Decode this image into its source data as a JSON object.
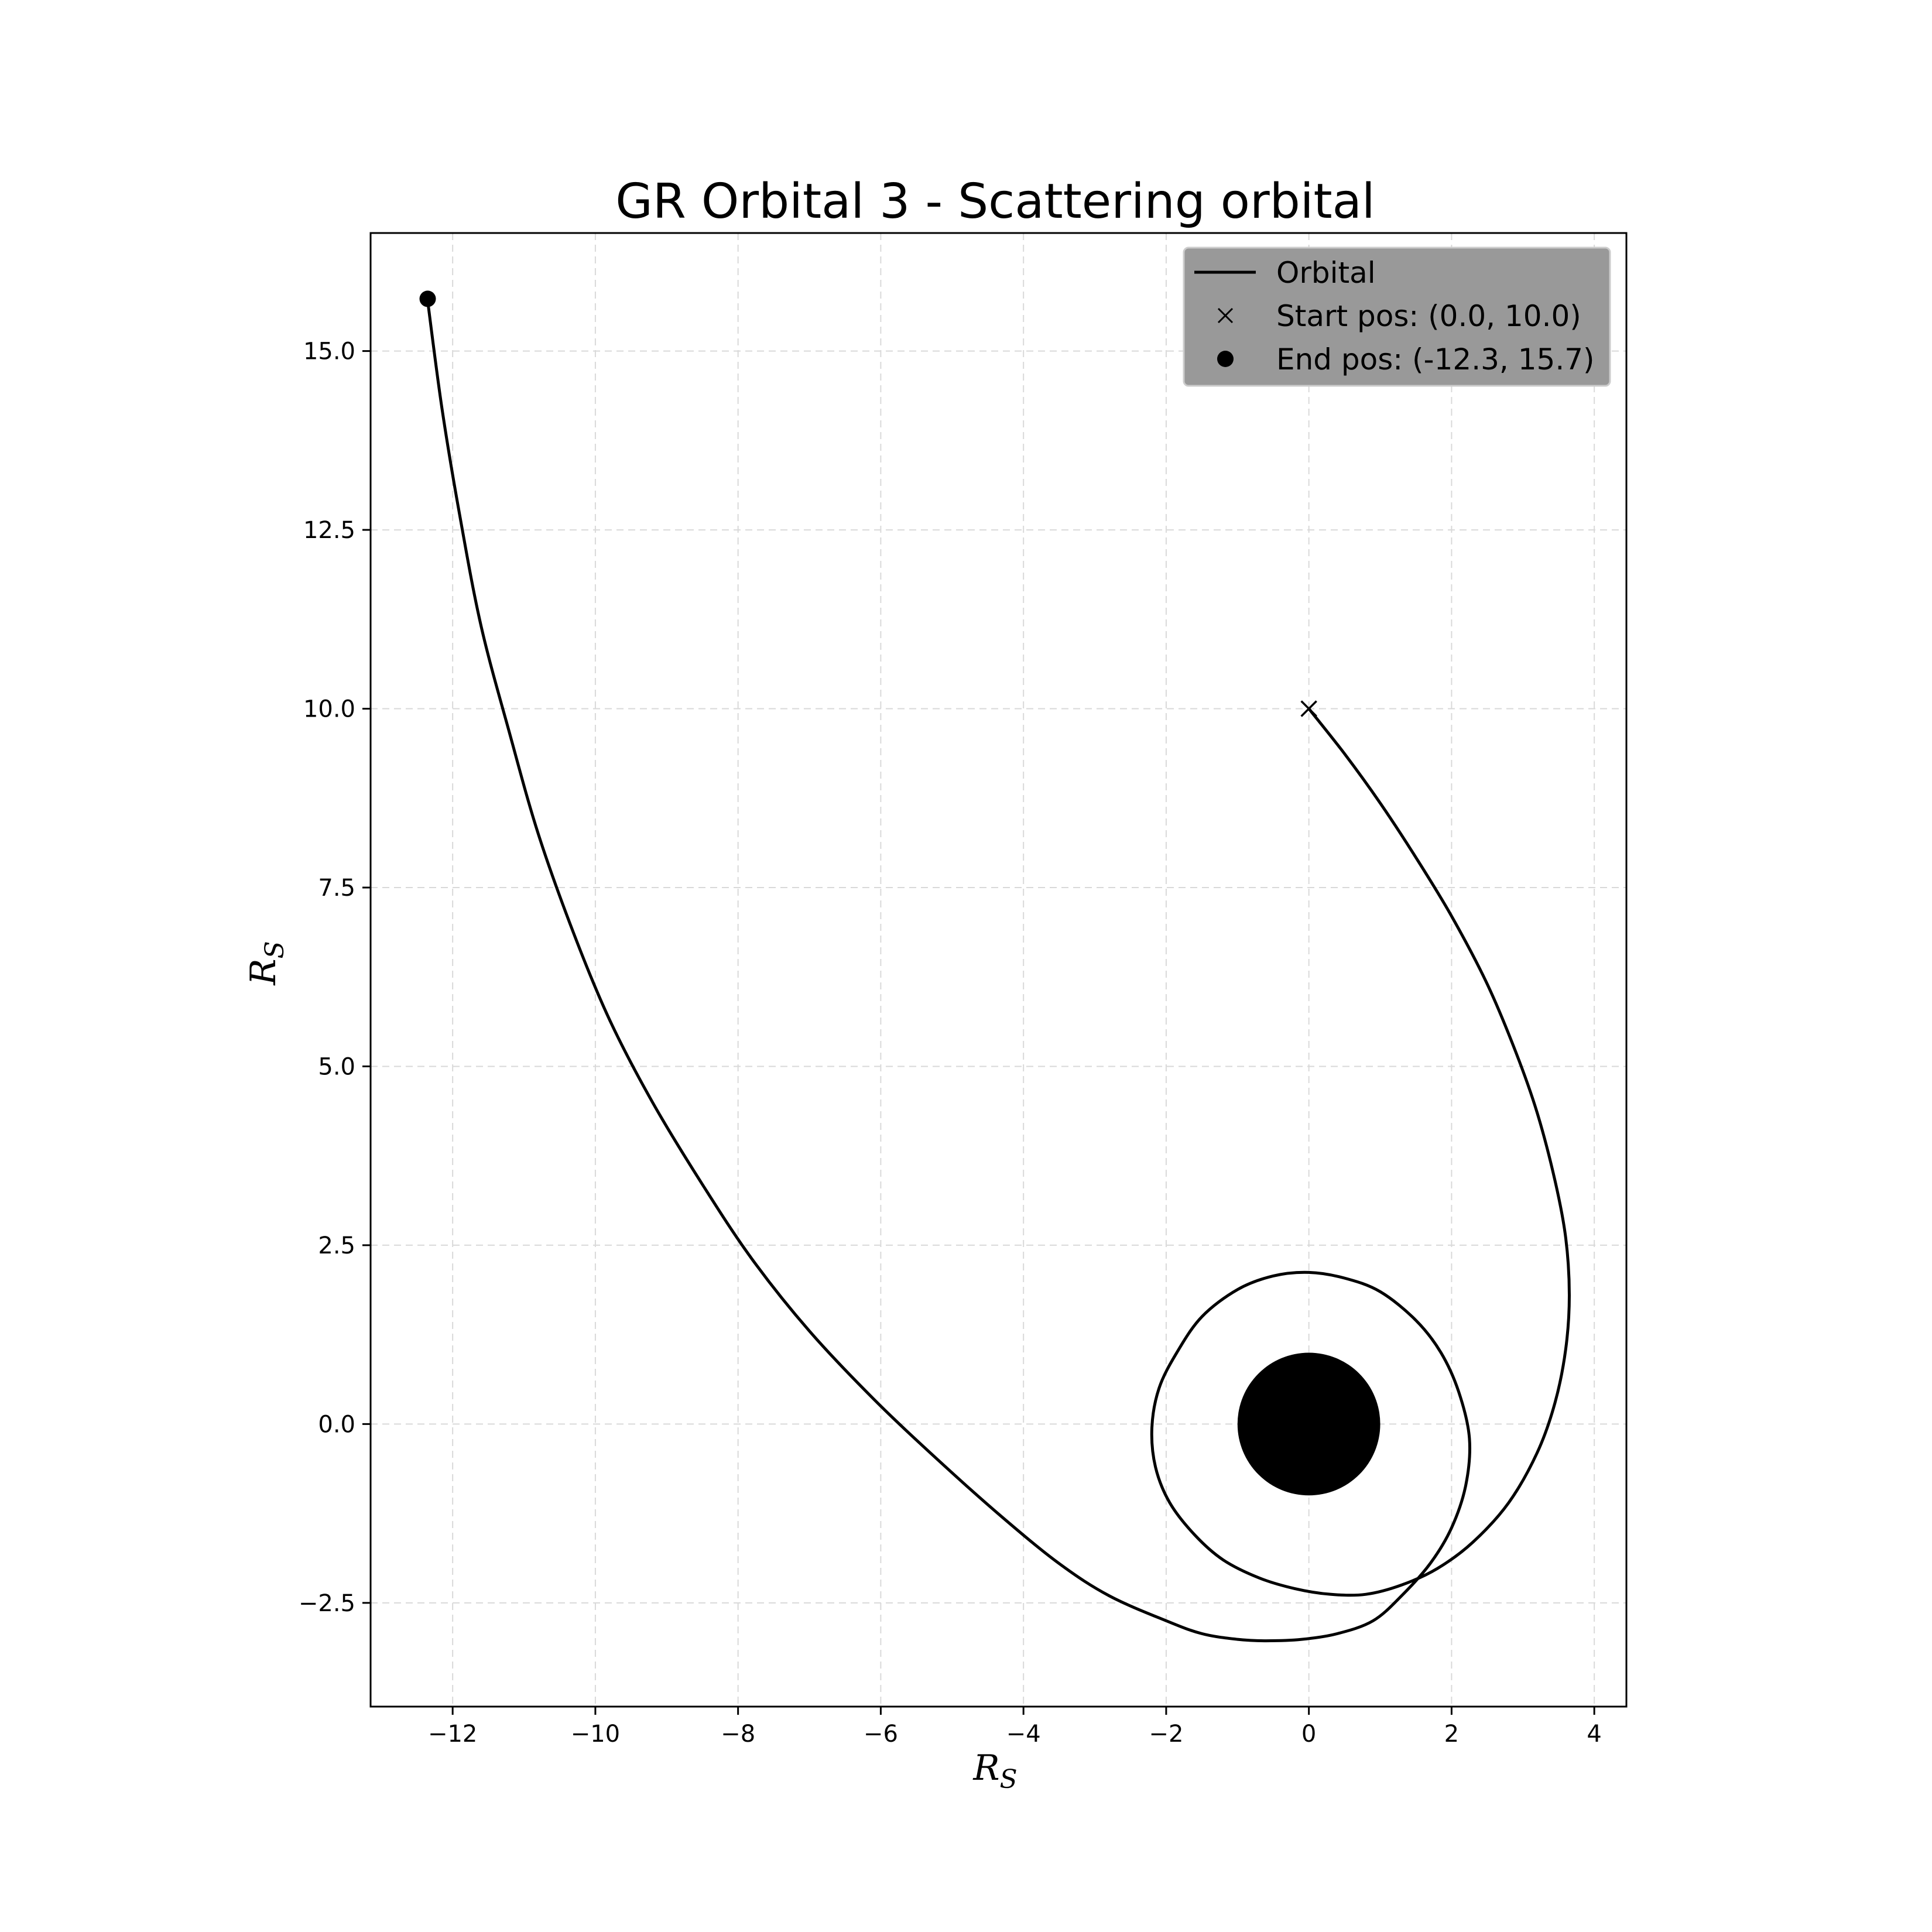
{
  "chart_data": {
    "type": "line",
    "title": "GR Orbital 3 - Scattering orbital",
    "xlabel": "R",
    "xlabel_sub": "S",
    "ylabel": "R",
    "ylabel_sub": "S",
    "xlim": [
      -13.15,
      4.45
    ],
    "ylim": [
      -3.95,
      16.65
    ],
    "xticks": [
      -12,
      -10,
      -8,
      -6,
      -4,
      -2,
      0,
      2,
      4
    ],
    "yticks": [
      -2.5,
      0.0,
      2.5,
      5.0,
      7.5,
      10.0,
      12.5,
      15.0
    ],
    "grid": true,
    "grid_style": "dashed",
    "legend_position": "top-right",
    "line_color": "#000000",
    "black_hole": {
      "center": [
        0,
        0
      ],
      "radius": 1.0,
      "color": "#000000"
    },
    "series": [
      {
        "name": "Orbital",
        "x": [
          0.0,
          0.5,
          1.0,
          1.5,
          2.0,
          2.5,
          2.9,
          3.2,
          3.45,
          3.6,
          3.65,
          3.6,
          3.45,
          3.2,
          2.8,
          2.3,
          1.8,
          1.3,
          0.8,
          0.3,
          -0.2,
          -0.7,
          -1.2,
          -1.6,
          -1.95,
          -2.15,
          -2.2,
          -2.1,
          -1.85,
          -1.5,
          -1.0,
          -0.5,
          0.0,
          0.5,
          1.0,
          1.5,
          1.85,
          2.1,
          2.25,
          2.2,
          2.0,
          1.7,
          1.3,
          0.9,
          0.4,
          -0.1,
          -0.6,
          -1.0,
          -1.5,
          -2.0,
          -2.8,
          -3.5,
          -4.3,
          -5.2,
          -6.1,
          -7.0,
          -7.8,
          -8.5,
          -9.2,
          -9.8,
          -10.3,
          -10.8,
          -11.2,
          -11.6,
          -11.9,
          -12.15,
          -12.35
        ],
        "y": [
          10.0,
          9.37,
          8.68,
          7.92,
          7.1,
          6.15,
          5.2,
          4.35,
          3.4,
          2.6,
          1.8,
          1.05,
          0.3,
          -0.4,
          -1.1,
          -1.65,
          -2.02,
          -2.25,
          -2.38,
          -2.38,
          -2.3,
          -2.15,
          -1.9,
          -1.55,
          -1.1,
          -0.6,
          -0.05,
          0.5,
          1.0,
          1.5,
          1.88,
          2.07,
          2.12,
          2.04,
          1.85,
          1.45,
          1.0,
          0.45,
          -0.2,
          -0.85,
          -1.45,
          -1.95,
          -2.4,
          -2.75,
          -2.93,
          -3.01,
          -3.03,
          -3.01,
          -2.93,
          -2.75,
          -2.4,
          -1.95,
          -1.3,
          -0.5,
          0.35,
          1.3,
          2.3,
          3.35,
          4.5,
          5.65,
          6.85,
          8.25,
          9.65,
          11.15,
          12.7,
          14.2,
          15.7
        ]
      }
    ],
    "markers": [
      {
        "name": "Start pos: (0.0, 10.0)",
        "x": 0.0,
        "y": 10.0,
        "symbol": "x"
      },
      {
        "name": "End pos: (-12.3, 15.7)",
        "x": -12.35,
        "y": 15.73,
        "symbol": "circle"
      }
    ],
    "legend": {
      "background": "#999999",
      "entries": [
        "Orbital",
        "Start pos: (0.0, 10.0)",
        "End pos: (-12.3, 15.7)"
      ]
    }
  }
}
